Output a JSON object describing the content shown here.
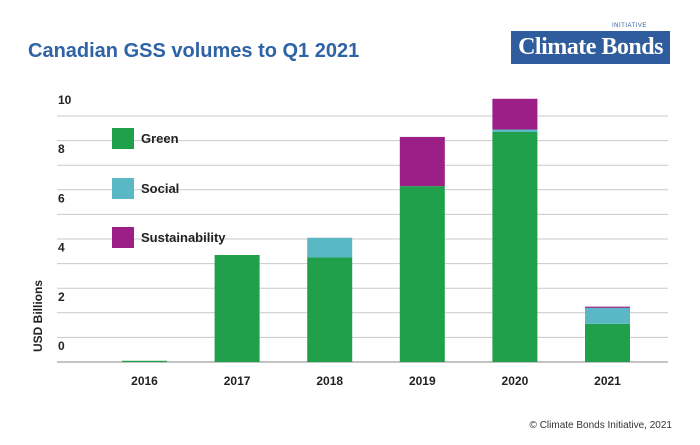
{
  "chart_data": {
    "type": "bar",
    "stacked": true,
    "title": "Canadian GSS volumes to Q1 2021",
    "ylabel": "USD Billions",
    "ylim": [
      0,
      10.5
    ],
    "yticks": [
      "0",
      "2",
      "4",
      "6",
      "8",
      "10"
    ],
    "categories": [
      "2016",
      "2017",
      "2018",
      "2019",
      "2020",
      "2021"
    ],
    "series": [
      {
        "name": "Green",
        "color": "#21a04b",
        "values": [
          0.05,
          4.35,
          4.25,
          7.15,
          9.35,
          1.55
        ]
      },
      {
        "name": "Social",
        "color": "#5ab8c4",
        "values": [
          0,
          0,
          0.8,
          0,
          0.1,
          0.65
        ]
      },
      {
        "name": "Sustainability",
        "color": "#9b1f87",
        "values": [
          0,
          0,
          0,
          2.0,
          1.25,
          0.05
        ]
      }
    ],
    "grid": true,
    "legend_position": "top-left"
  },
  "logo": {
    "text": "Climate Bonds",
    "sub": "INITIATIVE"
  },
  "footer": "© Climate Bonds Initiative, 2021"
}
